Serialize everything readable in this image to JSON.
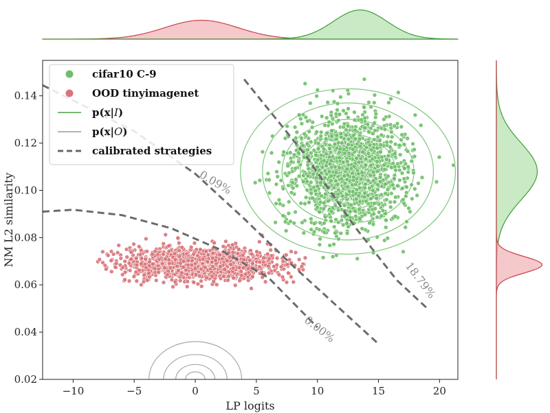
{
  "chart_data": {
    "type": "scatter",
    "xlabel": "LP logits",
    "ylabel": "NM L2 similarity",
    "xlim": [
      -12.5,
      21.5
    ],
    "ylim": [
      0.02,
      0.155
    ],
    "x_ticks": [
      -10,
      -5,
      0,
      5,
      10,
      15,
      20
    ],
    "x_tick_labels": [
      "−10",
      "−5",
      "0",
      "5",
      "10",
      "15",
      "20"
    ],
    "y_ticks": [
      0.02,
      0.04,
      0.06,
      0.08,
      0.1,
      0.12,
      0.14
    ],
    "y_tick_labels": [
      "0.02",
      "0.04",
      "0.06",
      "0.08",
      "0.10",
      "0.12",
      "0.14"
    ],
    "grid": false,
    "legend_position": "top-left",
    "legend": [
      {
        "kind": "marker",
        "label": "cifar10 C-9",
        "color": "#6fbf6a"
      },
      {
        "kind": "marker",
        "label": "OOD tinyimagenet",
        "color": "#d9757a"
      },
      {
        "kind": "line",
        "label_main": "p(x|",
        "label_cal": "I",
        "label_end": ")",
        "color": "#4a9e44",
        "dash": "solid"
      },
      {
        "kind": "line",
        "label_main": "p(x|",
        "label_cal": "O",
        "label_end": ")",
        "color": "#9a9a9a",
        "dash": "solid"
      },
      {
        "kind": "line",
        "label": "calibrated strategies",
        "color": "#666666",
        "dash": "dashed"
      }
    ],
    "series": [
      {
        "name": "cifar10 C-9",
        "color": "#6fbf6a",
        "distribution": {
          "x_mean": 12.5,
          "x_std": 2.3,
          "y_mean": 0.108,
          "y_std": 0.012,
          "n_points": 1700,
          "x_min": 4,
          "y_min": 0.065
        },
        "marginal_color": "#3f9c3c"
      },
      {
        "name": "OOD tinyimagenet",
        "color": "#d9757a",
        "distribution": {
          "x_mean": 0.5,
          "x_std": 3.0,
          "y_mean": 0.069,
          "y_std": 0.0035,
          "n_points": 1500,
          "x_min": -8,
          "x_max": 9.5
        },
        "marginal_color": "#c4434b"
      }
    ],
    "in_dist_contours": {
      "center": [
        12.5,
        0.108
      ],
      "radii": [
        [
          8.8,
          0.035
        ],
        [
          7.0,
          0.029
        ],
        [
          5.4,
          0.022
        ],
        [
          3.9,
          0.016
        ],
        [
          2.6,
          0.011
        ],
        [
          1.4,
          0.006
        ]
      ],
      "color": "#6fbf6a"
    },
    "ood_contours": {
      "center": [
        0,
        0.02
      ],
      "radii": [
        [
          3.8,
          0.016
        ],
        [
          2.6,
          0.0105
        ],
        [
          1.6,
          0.0063
        ],
        [
          0.8,
          0.0032
        ]
      ],
      "color": "#a8a8a8"
    },
    "strategies": [
      {
        "label": "0.09%",
        "points": [
          [
            -12.5,
            0.1445
          ],
          [
            -5,
            0.125
          ],
          [
            0,
            0.107
          ],
          [
            4,
            0.088
          ],
          [
            8,
            0.068
          ],
          [
            15,
            0.035
          ]
        ],
        "label_at": [
          1.5,
          0.102
        ],
        "label_angle": 31
      },
      {
        "label": "18.79%",
        "points": [
          [
            4,
            0.147
          ],
          [
            9,
            0.115
          ],
          [
            13,
            0.085
          ],
          [
            16.5,
            0.062
          ],
          [
            19,
            0.05
          ]
        ],
        "label_at": [
          18.2,
          0.061
        ],
        "label_angle": 53
      },
      {
        "label": "0.00%",
        "points": [
          [
            -12.5,
            0.091
          ],
          [
            -10,
            0.0918
          ],
          [
            -6,
            0.0895
          ],
          [
            -2,
            0.084
          ],
          [
            2,
            0.075
          ],
          [
            6,
            0.063
          ],
          [
            10,
            0.042
          ]
        ],
        "label_at": [
          10.0,
          0.04
        ],
        "label_angle": 38
      }
    ],
    "marginals": {
      "top": [
        {
          "name": "OOD tinyimagenet",
          "mean": 0.5,
          "std": 3.0,
          "peak_frac": 0.55
        },
        {
          "name": "cifar10 C-9",
          "mean": 13.5,
          "std": 2.2,
          "peak_frac": 0.85
        }
      ],
      "right": [
        {
          "name": "cifar10 C-9",
          "mean": 0.108,
          "std": 0.012,
          "peak_frac": 0.85
        },
        {
          "name": "OOD tinyimagenet",
          "mean": 0.0685,
          "std": 0.0035,
          "peak_frac": 0.95
        }
      ]
    }
  }
}
